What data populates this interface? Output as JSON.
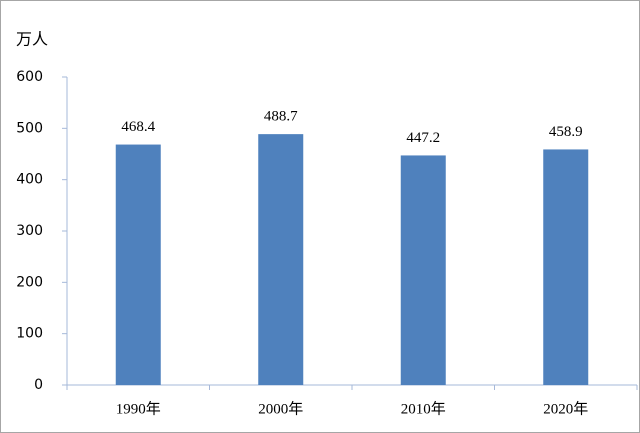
{
  "chart_data": {
    "type": "bar",
    "y_label": "万人",
    "categories": [
      "1990年",
      "2000年",
      "2010年",
      "2020年"
    ],
    "values": [
      468.4,
      488.7,
      447.2,
      458.9
    ],
    "color": "#4f81bd",
    "ylim": [
      0,
      600
    ],
    "yticks": [
      0,
      100,
      200,
      300,
      400,
      500,
      600
    ],
    "grid": false
  }
}
